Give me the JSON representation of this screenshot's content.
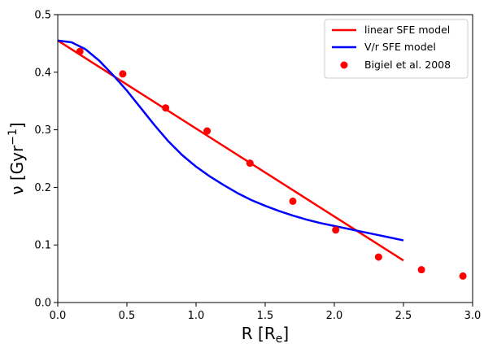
{
  "chart_data": {
    "type": "line",
    "xlabel_main": "R [R",
    "xlabel_sub": "e",
    "xlabel_end": "]",
    "ylabel_main": "ν [Gyr",
    "ylabel_sup": "−1",
    "ylabel_end": "]",
    "xlim": [
      0.0,
      3.0
    ],
    "ylim": [
      0.0,
      0.5
    ],
    "xticks": [
      "0.0",
      "0.5",
      "1.0",
      "1.5",
      "2.0",
      "2.5",
      "3.0"
    ],
    "yticks": [
      "0.0",
      "0.1",
      "0.2",
      "0.3",
      "0.4",
      "0.5"
    ],
    "legend_position": "top-right",
    "series": [
      {
        "name": "linear SFE model",
        "kind": "line",
        "color": "#ff0000",
        "x": [
          0.0,
          2.5
        ],
        "y": [
          0.455,
          0.073
        ]
      },
      {
        "name": "V/r SFE model",
        "kind": "line",
        "color": "#0000ff",
        "x": [
          0.0,
          0.1,
          0.2,
          0.3,
          0.4,
          0.5,
          0.6,
          0.7,
          0.8,
          0.9,
          1.0,
          1.1,
          1.2,
          1.3,
          1.4,
          1.5,
          1.6,
          1.7,
          1.8,
          1.9,
          2.0,
          2.1,
          2.2,
          2.3,
          2.4,
          2.5
        ],
        "y": [
          0.455,
          0.452,
          0.44,
          0.42,
          0.395,
          0.368,
          0.338,
          0.308,
          0.28,
          0.256,
          0.236,
          0.219,
          0.204,
          0.19,
          0.178,
          0.168,
          0.159,
          0.151,
          0.144,
          0.138,
          0.133,
          0.128,
          0.123,
          0.118,
          0.113,
          0.108
        ]
      },
      {
        "name": "Bigiel et al. 2008",
        "kind": "scatter",
        "color": "#ff0000",
        "x": [
          0.16,
          0.47,
          0.78,
          1.08,
          1.39,
          1.7,
          2.01,
          2.32,
          2.63,
          2.93
        ],
        "y": [
          0.436,
          0.397,
          0.338,
          0.298,
          0.242,
          0.176,
          0.126,
          0.079,
          0.057,
          0.046
        ]
      }
    ]
  }
}
